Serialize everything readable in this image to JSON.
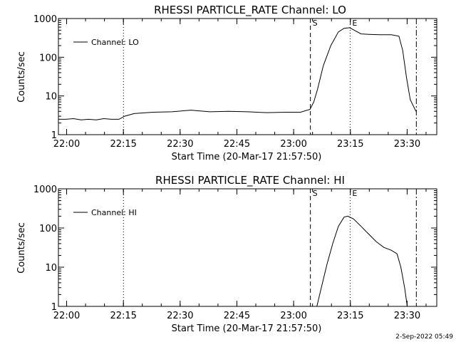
{
  "footer": {
    "timestamp": "2-Sep-2022 05:49"
  },
  "chart_data": [
    {
      "type": "line",
      "title": "RHESSI PARTICLE_RATE Channel: LO",
      "xlabel": "Start Time (20-Mar-17 21:57:50)",
      "ylabel": "Counts/sec",
      "y_scale": "log",
      "ylim": [
        1,
        1000
      ],
      "y_ticks": [
        "1",
        "10",
        "100",
        "1000"
      ],
      "x_unit": "minutes after 21:57:50",
      "xlim": [
        0,
        100
      ],
      "x_ticks": [
        {
          "label": "22:00",
          "x": 2.17
        },
        {
          "label": "22:15",
          "x": 17.17
        },
        {
          "label": "22:30",
          "x": 32.17
        },
        {
          "label": "22:45",
          "x": 47.17
        },
        {
          "label": "23:00",
          "x": 62.17
        },
        {
          "label": "23:15",
          "x": 77.17
        },
        {
          "label": "23:30",
          "x": 92.17
        }
      ],
      "legend": "Channel: LO",
      "legend_position": "upper-left",
      "markers": [
        {
          "label": "",
          "x": 17.2,
          "style": "dotted"
        },
        {
          "label": "S",
          "x": 66.6,
          "style": "dashed"
        },
        {
          "label": "E",
          "x": 77.1,
          "style": "dotted"
        },
        {
          "label": "",
          "x": 94.6,
          "style": "dashdot"
        }
      ],
      "series": [
        {
          "name": "Channel: LO",
          "x": [
            0,
            2,
            4,
            6,
            8,
            10,
            12,
            14,
            16,
            17.5,
            20,
            25,
            30,
            35,
            40,
            45,
            50,
            55,
            60,
            64,
            66.5,
            67.5,
            68.5,
            70,
            72,
            74,
            75.5,
            77,
            78.5,
            80,
            82,
            85,
            88,
            90,
            91,
            92,
            93,
            94.5
          ],
          "y": [
            2.5,
            2.5,
            2.6,
            2.4,
            2.5,
            2.4,
            2.6,
            2.5,
            2.5,
            3.0,
            3.5,
            3.8,
            3.9,
            4.3,
            3.9,
            4.0,
            3.9,
            3.7,
            3.8,
            3.8,
            4.5,
            7,
            15,
            60,
            200,
            450,
            560,
            580,
            480,
            400,
            390,
            380,
            380,
            350,
            150,
            30,
            8,
            4
          ]
        }
      ]
    },
    {
      "type": "line",
      "title": "RHESSI PARTICLE_RATE Channel: HI",
      "xlabel": "Start Time (20-Mar-17 21:57:50)",
      "ylabel": "Counts/sec",
      "y_scale": "log",
      "ylim": [
        1,
        1000
      ],
      "y_ticks": [
        "1",
        "10",
        "100",
        "1000"
      ],
      "x_unit": "minutes after 21:57:50",
      "xlim": [
        0,
        100
      ],
      "x_ticks": [
        {
          "label": "22:00",
          "x": 2.17
        },
        {
          "label": "22:15",
          "x": 17.17
        },
        {
          "label": "22:30",
          "x": 32.17
        },
        {
          "label": "22:45",
          "x": 47.17
        },
        {
          "label": "23:00",
          "x": 62.17
        },
        {
          "label": "23:15",
          "x": 77.17
        },
        {
          "label": "23:30",
          "x": 92.17
        }
      ],
      "legend": "Channel: HI",
      "legend_position": "upper-left",
      "markers": [
        {
          "label": "",
          "x": 17.2,
          "style": "dotted"
        },
        {
          "label": "S",
          "x": 66.6,
          "style": "dashed"
        },
        {
          "label": "E",
          "x": 77.1,
          "style": "dotted"
        },
        {
          "label": "",
          "x": 94.6,
          "style": "dashdot"
        }
      ],
      "series": [
        {
          "name": "Channel: HI",
          "x": [
            68.3,
            69.5,
            71,
            72.5,
            74,
            75.5,
            76.5,
            78,
            80,
            82,
            84,
            86,
            88,
            89.5,
            90.5,
            91.5,
            92.2
          ],
          "y": [
            1,
            3,
            12,
            40,
            110,
            190,
            200,
            170,
            110,
            70,
            45,
            32,
            27,
            22,
            10,
            3,
            1
          ]
        }
      ]
    }
  ]
}
